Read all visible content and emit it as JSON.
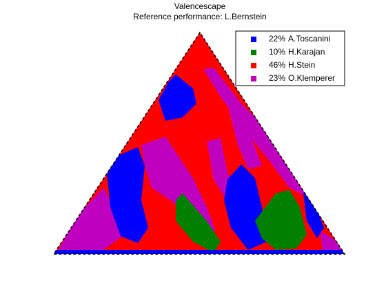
{
  "chart_data": {
    "type": "valencescape",
    "title": "Valencescape",
    "subtitle": "Reference performance: L.Bernstein",
    "series": [
      {
        "name": "A.Toscanini",
        "color": "#0000ff",
        "value": 22,
        "value_label": "22%"
      },
      {
        "name": "H.Karajan",
        "color": "#008000",
        "value": 10,
        "value_label": "10%"
      },
      {
        "name": "H.Stein",
        "color": "#ff0000",
        "value": 46,
        "value_label": "46%"
      },
      {
        "name": "O.Klemperer",
        "color": "#bf00bf",
        "value": 23,
        "value_label": "23%"
      }
    ],
    "legend": "upper right"
  }
}
